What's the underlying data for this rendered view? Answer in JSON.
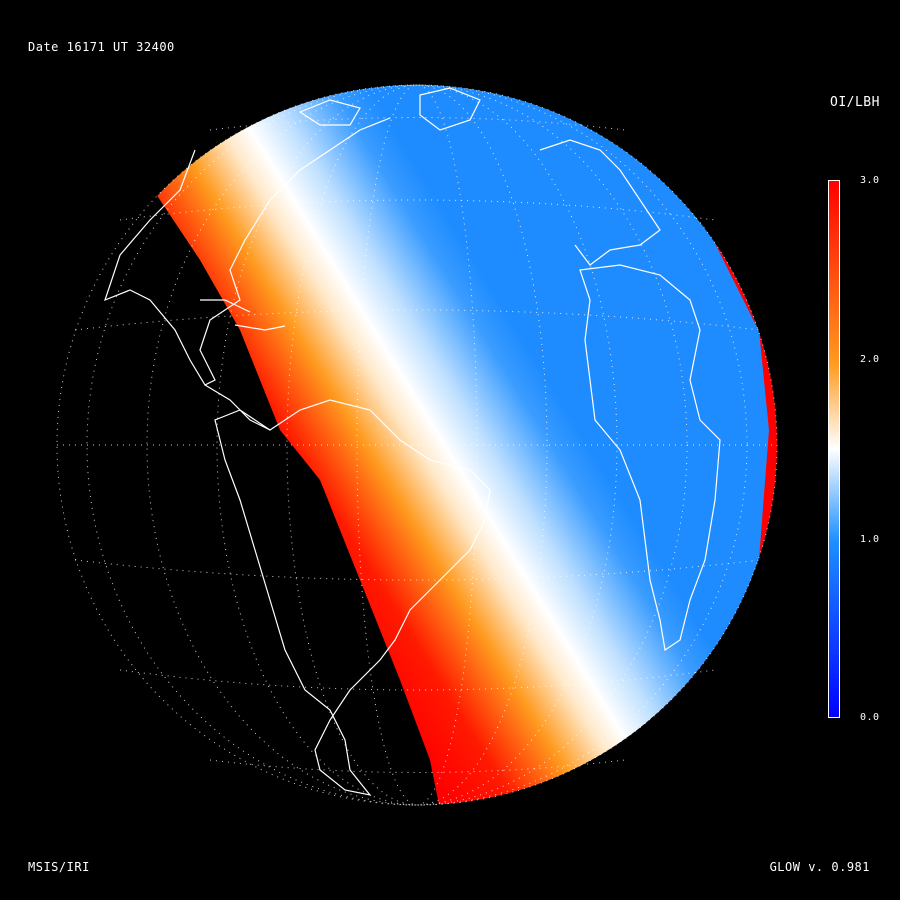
{
  "header": {
    "date_ut": "Date 16171  UT 32400"
  },
  "footer": {
    "model_left": "MSIS/IRI",
    "version_right": "GLOW v. 0.981"
  },
  "colorbar": {
    "title": "OI/LBH",
    "range": [
      0.0,
      3.0
    ],
    "ticks": [
      "3.0",
      "2.0",
      "1.0",
      "0.0"
    ],
    "colors": {
      "low": "#0000ff",
      "mid_low": "#1e90ff",
      "mid": "#ffffff",
      "mid_high": "#ff9a1f",
      "high": "#ff0000"
    }
  },
  "map": {
    "projection": "orthographic",
    "center_lon": -35,
    "center_lat": 5,
    "features": [
      "coastlines",
      "graticule",
      "night-side",
      "terminator-band"
    ]
  }
}
